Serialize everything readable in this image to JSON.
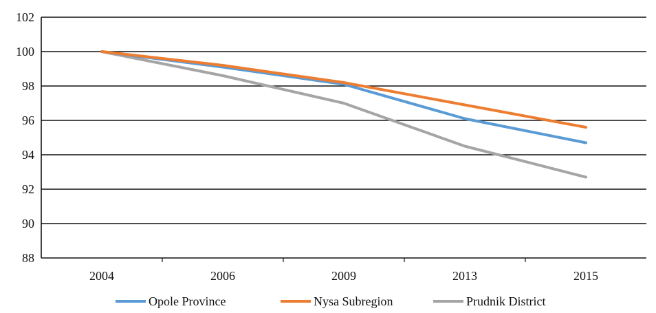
{
  "chart_data": {
    "type": "line",
    "title": "",
    "xlabel": "",
    "ylabel": "",
    "categories": [
      "2004",
      "2006",
      "2009",
      "2013",
      "2015"
    ],
    "ylim": [
      88,
      102
    ],
    "yticks": [
      "88",
      "90",
      "92",
      "94",
      "96",
      "98",
      "100",
      "102"
    ],
    "grid": true,
    "legend_position": "bottom",
    "series": [
      {
        "name": "Opole Province",
        "color": "#5b9bd5",
        "values": [
          100.0,
          99.1,
          98.1,
          96.1,
          94.7
        ]
      },
      {
        "name": "Nysa Subregion",
        "color": "#ed7d31",
        "values": [
          100.0,
          99.2,
          98.2,
          96.9,
          95.6
        ]
      },
      {
        "name": "Prudnik District",
        "color": "#a5a5a5",
        "values": [
          100.0,
          98.6,
          97.0,
          94.5,
          92.7
        ]
      }
    ]
  }
}
